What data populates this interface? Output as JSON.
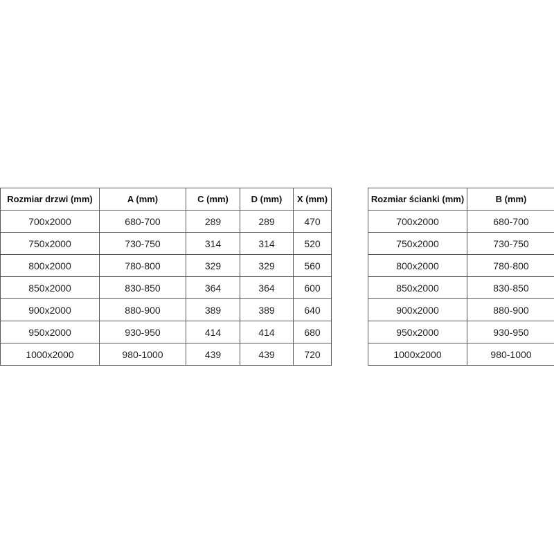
{
  "door_table": {
    "headers": [
      "Rozmiar drzwi (mm)",
      "A (mm)",
      "C (mm)",
      "D (mm)",
      "X (mm)"
    ],
    "rows": [
      [
        "700x2000",
        "680-700",
        "289",
        "289",
        "470"
      ],
      [
        "750x2000",
        "730-750",
        "314",
        "314",
        "520"
      ],
      [
        "800x2000",
        "780-800",
        "329",
        "329",
        "560"
      ],
      [
        "850x2000",
        "830-850",
        "364",
        "364",
        "600"
      ],
      [
        "900x2000",
        "880-900",
        "389",
        "389",
        "640"
      ],
      [
        "950x2000",
        "930-950",
        "414",
        "414",
        "680"
      ],
      [
        "1000x2000",
        "980-1000",
        "439",
        "439",
        "720"
      ]
    ]
  },
  "wall_table": {
    "headers": [
      "Rozmiar ścianki (mm)",
      "B (mm)"
    ],
    "rows": [
      [
        "700x2000",
        "680-700"
      ],
      [
        "750x2000",
        "730-750"
      ],
      [
        "800x2000",
        "780-800"
      ],
      [
        "850x2000",
        "830-850"
      ],
      [
        "900x2000",
        "880-900"
      ],
      [
        "950x2000",
        "930-950"
      ],
      [
        "1000x2000",
        "980-1000"
      ]
    ]
  }
}
